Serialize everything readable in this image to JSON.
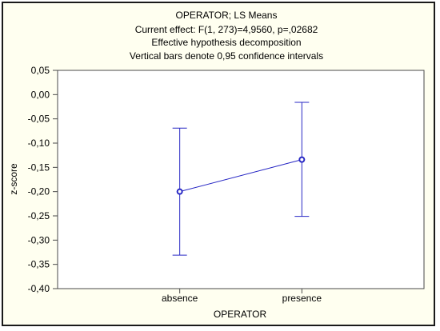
{
  "chart_data": {
    "type": "line",
    "title_lines": [
      "OPERATOR; LS Means",
      "Current effect: F(1, 273)=4,9560, p=,02682",
      "Effective hypothesis decomposition",
      "Vertical bars denote 0,95 confidence intervals"
    ],
    "xlabel": "OPERATOR",
    "ylabel": "z-score",
    "categories": [
      "absence",
      "presence"
    ],
    "series": [
      {
        "values": [
          -0.2,
          -0.134
        ],
        "ci_lower": [
          -0.331,
          -0.251
        ],
        "ci_upper": [
          -0.069,
          -0.016
        ]
      }
    ],
    "ylim": [
      -0.4,
      0.05
    ],
    "yticks": [
      0.05,
      0.0,
      -0.05,
      -0.1,
      -0.15,
      -0.2,
      -0.25,
      -0.3,
      -0.35,
      -0.4
    ],
    "ytick_labels": [
      "0,05",
      "0,00",
      "-0,05",
      "-0,10",
      "-0,15",
      "-0,20",
      "-0,25",
      "-0,30",
      "-0,35",
      "-0,40"
    ],
    "grid": false,
    "colors": {
      "series": "#2727c4",
      "axes": "#4a4a4a",
      "background": "#fffff0"
    }
  }
}
